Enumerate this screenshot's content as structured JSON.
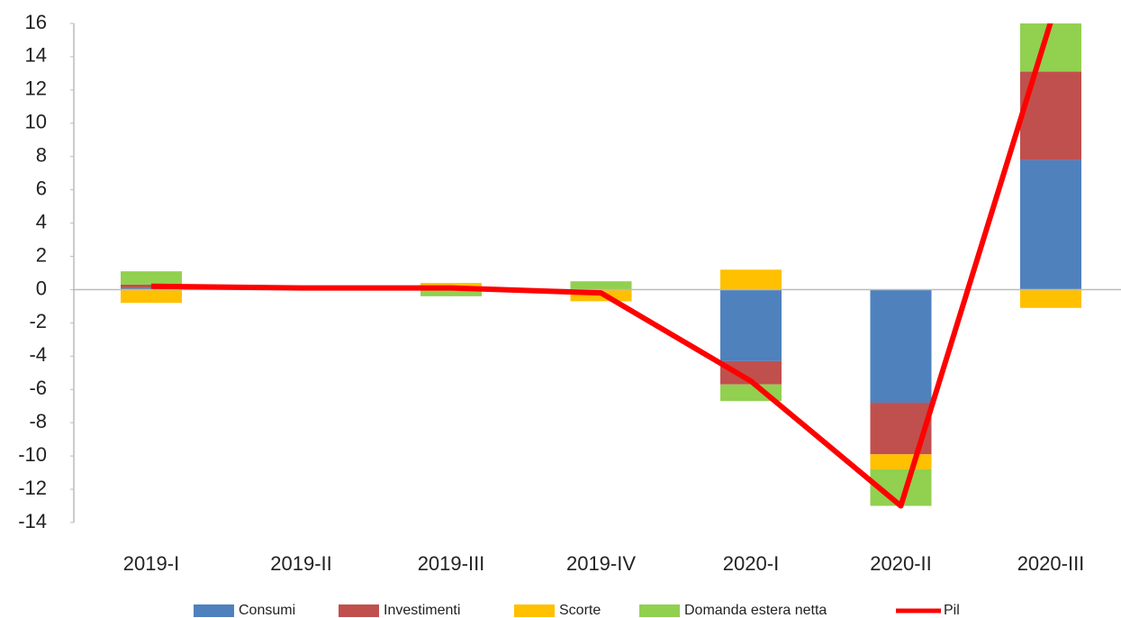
{
  "chart_data": {
    "type": "bar",
    "stacked": true,
    "categories": [
      "2019-I",
      "2019-II",
      "2019-III",
      "2019-IV",
      "2020-I",
      "2020-II",
      "2020-III"
    ],
    "series": [
      {
        "name": "Consumi",
        "color": "#4f81bd",
        "values": [
          0.1,
          0,
          0,
          0,
          -4.3,
          -6.8,
          7.8
        ]
      },
      {
        "name": "Investimenti",
        "color": "#c0504d",
        "values": [
          0.2,
          0,
          0,
          0,
          -1.4,
          -3.1,
          5.3
        ]
      },
      {
        "name": "Scorte",
        "color": "#ffc000",
        "values": [
          -0.8,
          0,
          0.4,
          -0.7,
          1.2,
          -0.9,
          -1.1
        ]
      },
      {
        "name": "Domanda estera netta",
        "color": "#92d050",
        "values": [
          0.8,
          0,
          -0.4,
          0.5,
          -1.0,
          -2.2,
          2.9
        ]
      },
      {
        "name": "Pil",
        "color": "#ff0000",
        "type": "line",
        "values": [
          0.2,
          0.1,
          0.1,
          -0.2,
          -5.5,
          -13.0,
          16.1
        ]
      }
    ],
    "ylim": [
      -14,
      16
    ],
    "yticks": [
      -14,
      -12,
      -10,
      -8,
      -6,
      -4,
      -2,
      0,
      2,
      4,
      6,
      8,
      10,
      12,
      14,
      16
    ],
    "grid": false,
    "legend": "bottom"
  }
}
